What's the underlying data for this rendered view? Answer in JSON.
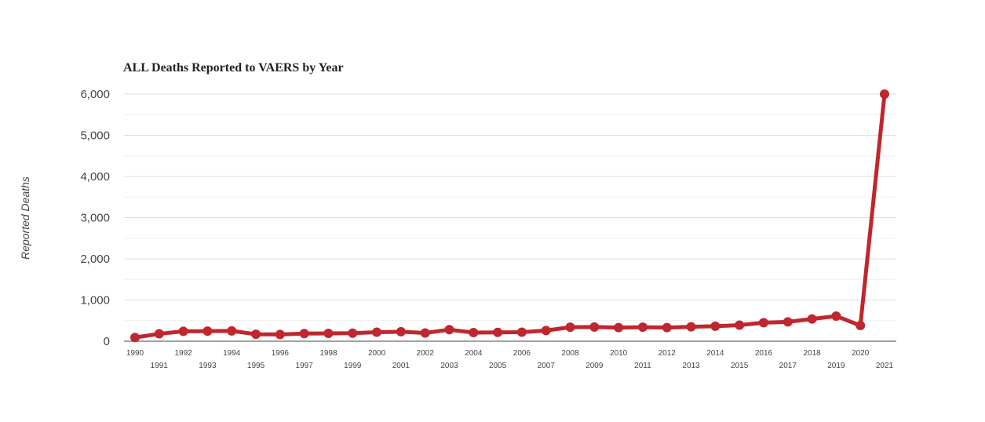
{
  "chart_data": {
    "type": "line",
    "title": "ALL Deaths Reported to VAERS by Year",
    "xlabel": "",
    "ylabel": "Reported Deaths",
    "ylim": [
      0,
      6000
    ],
    "yticks": [
      0,
      1000,
      2000,
      3000,
      4000,
      5000,
      6000
    ],
    "ytick_labels": [
      "0",
      "1,000",
      "2,000",
      "3,000",
      "4,000",
      "5,000",
      "6,000"
    ],
    "grid": true,
    "legend": "none",
    "color": "#c0262d",
    "categories": [
      "1990",
      "1991",
      "1992",
      "1993",
      "1994",
      "1995",
      "1996",
      "1997",
      "1998",
      "1999",
      "2000",
      "2001",
      "2002",
      "2003",
      "2004",
      "2005",
      "2006",
      "2007",
      "2008",
      "2009",
      "2010",
      "2011",
      "2012",
      "2013",
      "2014",
      "2015",
      "2016",
      "2017",
      "2018",
      "2019",
      "2020",
      "2021"
    ],
    "series": [
      {
        "values": [
          90,
          180,
          240,
          245,
          250,
          170,
          165,
          185,
          190,
          195,
          220,
          230,
          200,
          280,
          210,
          215,
          220,
          260,
          340,
          345,
          330,
          340,
          330,
          350,
          365,
          390,
          450,
          470,
          540,
          610,
          380,
          6000
        ]
      }
    ]
  }
}
